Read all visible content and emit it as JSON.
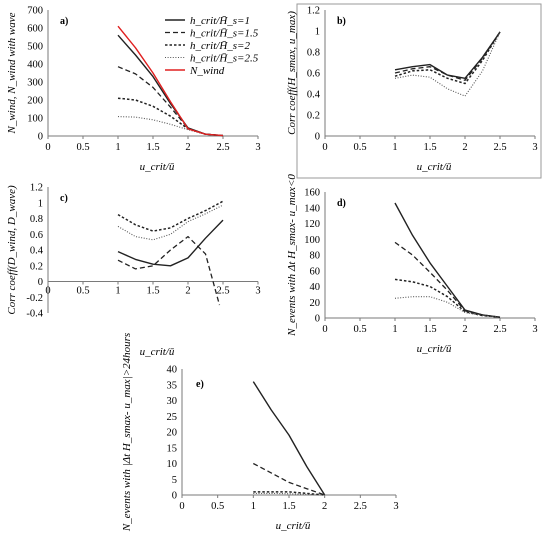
{
  "chart_data": [
    {
      "type": "line",
      "panel_label": "a)",
      "xlabel": "u_crit/ū",
      "ylabel": "N_wind, N_wind with wave",
      "xlim": [
        0,
        3
      ],
      "ylim": [
        0,
        700
      ],
      "xticks": [
        0,
        0.5,
        1,
        1.5,
        2,
        2.5,
        3
      ],
      "yticks": [
        0,
        100,
        200,
        300,
        400,
        500,
        600,
        700
      ],
      "grid": false,
      "legend": "top-right",
      "series": [
        {
          "name": "h_crit/H̄_s=1",
          "style": "solid",
          "color": "#222222",
          "x": [
            1,
            1.25,
            1.5,
            1.75,
            2,
            2.25,
            2.5
          ],
          "y": [
            560,
            450,
            330,
            180,
            45,
            10,
            2
          ]
        },
        {
          "name": "h_crit/H̄_s=1.5",
          "style": "dash",
          "color": "#222222",
          "x": [
            1,
            1.25,
            1.5,
            1.75,
            2,
            2.25,
            2.5
          ],
          "y": [
            385,
            345,
            270,
            160,
            42,
            10,
            2
          ]
        },
        {
          "name": "h_crit/H̄_s=2",
          "style": "dot",
          "color": "#222222",
          "x": [
            1,
            1.25,
            1.5,
            1.75,
            2,
            2.25,
            2.5
          ],
          "y": [
            210,
            200,
            165,
            110,
            40,
            10,
            2
          ]
        },
        {
          "name": "h_crit/H̄_s=2.5",
          "style": "fine",
          "color": "#555555",
          "x": [
            1,
            1.25,
            1.5,
            1.75,
            2,
            2.25,
            2.5
          ],
          "y": [
            108,
            105,
            90,
            65,
            35,
            9,
            2
          ]
        },
        {
          "name": "N_wind",
          "style": "solid",
          "color": "#e02020",
          "x": [
            1,
            1.25,
            1.5,
            1.75,
            2,
            2.25,
            2.5
          ],
          "y": [
            610,
            490,
            350,
            190,
            40,
            10,
            2
          ]
        }
      ]
    },
    {
      "type": "line",
      "panel_label": "b)",
      "xlabel": "u_crit/ū",
      "ylabel": "Corr coeff(H_smax, u_max)",
      "xlim": [
        0,
        3
      ],
      "ylim": [
        0,
        1.2
      ],
      "xticks": [
        0,
        0.5,
        1,
        1.5,
        2,
        2.5,
        3
      ],
      "yticks": [
        0,
        0.2,
        0.4,
        0.6,
        0.8,
        1,
        1.2
      ],
      "grid": false,
      "series": [
        {
          "name": "h_crit/H̄_s=1",
          "style": "solid",
          "color": "#222222",
          "x": [
            1,
            1.25,
            1.5,
            1.75,
            2,
            2.25,
            2.5
          ],
          "y": [
            0.63,
            0.66,
            0.68,
            0.58,
            0.55,
            0.75,
            0.99
          ]
        },
        {
          "name": "h_crit/H̄_s=1.5",
          "style": "dash",
          "color": "#222222",
          "x": [
            1,
            1.25,
            1.5,
            1.75,
            2,
            2.25,
            2.5
          ],
          "y": [
            0.6,
            0.64,
            0.66,
            0.58,
            0.53,
            0.74,
            0.99
          ]
        },
        {
          "name": "h_crit/H̄_s=2",
          "style": "dot",
          "color": "#222222",
          "x": [
            1,
            1.25,
            1.5,
            1.75,
            2,
            2.25,
            2.5
          ],
          "y": [
            0.57,
            0.62,
            0.63,
            0.55,
            0.5,
            0.72,
            0.99
          ]
        },
        {
          "name": "h_crit/H̄_s=2.5",
          "style": "fine",
          "color": "#555555",
          "x": [
            1,
            1.25,
            1.5,
            1.75,
            2,
            2.25,
            2.5
          ],
          "y": [
            0.55,
            0.58,
            0.56,
            0.45,
            0.38,
            0.62,
            0.99
          ]
        }
      ]
    },
    {
      "type": "line",
      "panel_label": "c)",
      "xlabel": "u_crit/ū",
      "ylabel": "Corr coeff(D_wind, D_wave)",
      "xlim": [
        0,
        3
      ],
      "ylim": [
        -0.4,
        1.2
      ],
      "xticks": [
        0,
        0.5,
        1,
        1.5,
        2,
        2.5,
        3
      ],
      "yticks": [
        -0.4,
        -0.2,
        0,
        0.2,
        0.4,
        0.6,
        0.8,
        1,
        1.2
      ],
      "grid": false,
      "series": [
        {
          "name": "h_crit/H̄_s=1",
          "style": "solid",
          "color": "#222222",
          "x": [
            1,
            1.25,
            1.5,
            1.75,
            2,
            2.25,
            2.5
          ],
          "y": [
            0.38,
            0.28,
            0.22,
            0.2,
            0.3,
            0.55,
            0.78
          ]
        },
        {
          "name": "h_crit/H̄_s=1.5",
          "style": "dash",
          "color": "#222222",
          "x": [
            1,
            1.25,
            1.5,
            1.75,
            2,
            2.25,
            2.45
          ],
          "y": [
            0.27,
            0.16,
            0.2,
            0.4,
            0.57,
            0.35,
            -0.3
          ]
        },
        {
          "name": "h_crit/H̄_s=2",
          "style": "dot",
          "color": "#222222",
          "x": [
            1,
            1.25,
            1.5,
            1.75,
            2,
            2.25,
            2.5
          ],
          "y": [
            0.85,
            0.72,
            0.64,
            0.68,
            0.8,
            0.9,
            1.02
          ]
        },
        {
          "name": "h_crit/H̄_s=2.5",
          "style": "fine",
          "color": "#555555",
          "x": [
            1,
            1.25,
            1.5,
            1.75,
            2,
            2.25,
            2.5
          ],
          "y": [
            0.7,
            0.57,
            0.53,
            0.6,
            0.76,
            0.86,
            0.97
          ]
        }
      ]
    },
    {
      "type": "line",
      "panel_label": "d)",
      "xlabel": "u_crit/ū",
      "ylabel": "N_events with Δt H_smax- u_max<0",
      "xlim": [
        0,
        3
      ],
      "ylim": [
        0,
        160
      ],
      "xticks": [
        0,
        0.5,
        1,
        1.5,
        2,
        2.5,
        3
      ],
      "yticks": [
        0,
        20,
        40,
        60,
        80,
        100,
        120,
        140,
        160
      ],
      "grid": false,
      "series": [
        {
          "name": "h_crit/H̄_s=1",
          "style": "solid",
          "color": "#222222",
          "x": [
            1,
            1.25,
            1.5,
            1.75,
            2,
            2.25,
            2.5
          ],
          "y": [
            146,
            105,
            70,
            40,
            10,
            4,
            1
          ]
        },
        {
          "name": "h_crit/H̄_s=1.5",
          "style": "dash",
          "color": "#222222",
          "x": [
            1,
            1.25,
            1.5,
            1.75,
            2,
            2.25,
            2.5
          ],
          "y": [
            96,
            80,
            58,
            35,
            9,
            4,
            1
          ]
        },
        {
          "name": "h_crit/H̄_s=2",
          "style": "dot",
          "color": "#222222",
          "x": [
            1,
            1.25,
            1.5,
            1.75,
            2,
            2.25,
            2.5
          ],
          "y": [
            49,
            46,
            40,
            27,
            8,
            3,
            1
          ]
        },
        {
          "name": "h_crit/H̄_s=2.5",
          "style": "fine",
          "color": "#555555",
          "x": [
            1,
            1.25,
            1.5,
            1.75,
            2,
            2.25,
            2.5
          ],
          "y": [
            25,
            27,
            27,
            20,
            7,
            3,
            1
          ]
        }
      ]
    },
    {
      "type": "line",
      "panel_label": "e)",
      "xlabel": "u_crit/ū",
      "ylabel": "N_events with |Δt H_smax- u_max|>24hours",
      "xlim": [
        0,
        3
      ],
      "ylim": [
        0,
        40
      ],
      "xticks": [
        0,
        0.5,
        1,
        1.5,
        2,
        2.5,
        3
      ],
      "yticks": [
        0,
        5,
        10,
        15,
        20,
        25,
        30,
        35,
        40
      ],
      "grid": false,
      "series": [
        {
          "name": "h_crit/H̄_s=1",
          "style": "solid",
          "color": "#222222",
          "x": [
            1,
            1.25,
            1.5,
            1.75,
            2
          ],
          "y": [
            36,
            27,
            19,
            9,
            0
          ]
        },
        {
          "name": "h_crit/H̄_s=1.5",
          "style": "dash",
          "color": "#222222",
          "x": [
            1,
            1.25,
            1.5,
            1.75,
            2
          ],
          "y": [
            10,
            7,
            4,
            2,
            0
          ]
        },
        {
          "name": "h_crit/H̄_s=2",
          "style": "dot",
          "color": "#222222",
          "x": [
            1,
            1.25,
            1.5,
            1.75,
            2
          ],
          "y": [
            1,
            1,
            1,
            0.5,
            0
          ]
        },
        {
          "name": "h_crit/H̄_s=2.5",
          "style": "fine",
          "color": "#555555",
          "x": [
            1,
            1.25,
            1.5,
            1.75,
            2
          ],
          "y": [
            0.5,
            0.5,
            0.4,
            0.2,
            0
          ]
        }
      ]
    }
  ]
}
